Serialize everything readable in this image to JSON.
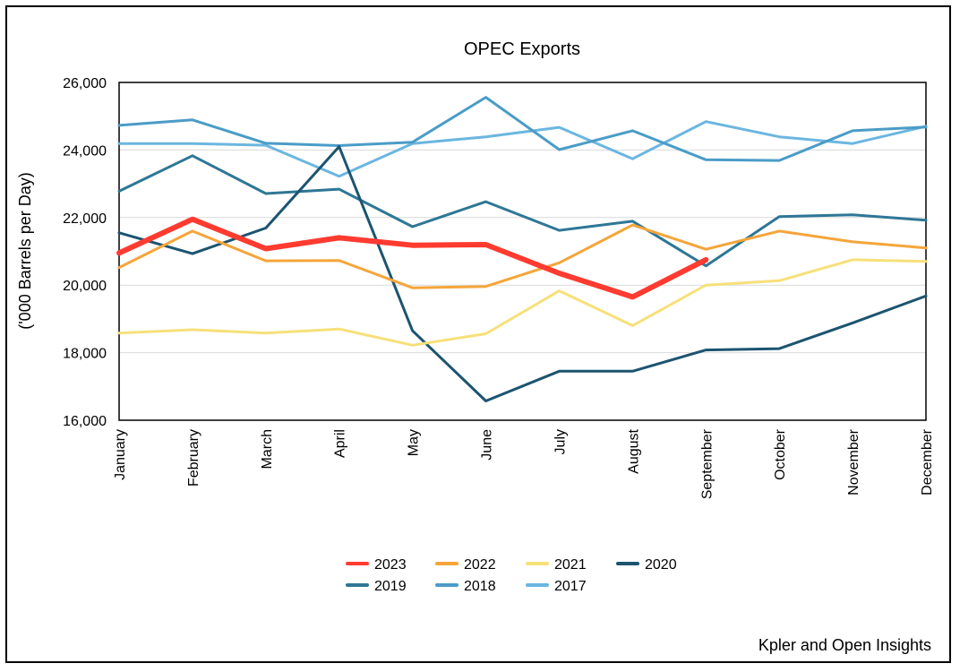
{
  "chart_data": {
    "type": "line",
    "title": "OPEC Exports",
    "ylabel": "('000 Barrels per Day)",
    "xlabel": "",
    "ylim": [
      16000,
      26000
    ],
    "yticks": [
      16000,
      18000,
      20000,
      22000,
      24000,
      26000
    ],
    "ytick_labels": [
      "16,000",
      "18,000",
      "20,000",
      "22,000",
      "24,000",
      "26,000"
    ],
    "grid": true,
    "legend_position": "bottom",
    "categories": [
      "January",
      "February",
      "March",
      "April",
      "May",
      "June",
      "July",
      "August",
      "September",
      "October",
      "November",
      "December"
    ],
    "series": [
      {
        "name": "2023",
        "color": "#ff3b30",
        "width": 6,
        "values": [
          20950,
          21950,
          21080,
          21400,
          21180,
          21200,
          20350,
          19650,
          20750,
          null,
          null,
          null
        ]
      },
      {
        "name": "2022",
        "color": "#f5a53a",
        "width": 3,
        "values": [
          20520,
          21600,
          20720,
          20730,
          19920,
          19960,
          20660,
          21780,
          21060,
          21600,
          21280,
          21100
        ]
      },
      {
        "name": "2021",
        "color": "#f7e07a",
        "width": 3,
        "values": [
          18580,
          18680,
          18580,
          18700,
          18220,
          18560,
          19830,
          18800,
          20000,
          20130,
          20750,
          20700
        ]
      },
      {
        "name": "2020",
        "color": "#1c5470",
        "width": 3,
        "values": [
          21550,
          20930,
          21690,
          24100,
          18650,
          16570,
          17450,
          17450,
          18080,
          18120,
          18880,
          19680
        ]
      },
      {
        "name": "2019",
        "color": "#2e7796",
        "width": 3,
        "values": [
          22780,
          23830,
          22710,
          22840,
          21730,
          22470,
          21620,
          21890,
          20570,
          22030,
          22080,
          21920
        ]
      },
      {
        "name": "2018",
        "color": "#4a9cc7",
        "width": 3,
        "values": [
          24730,
          24890,
          24200,
          24130,
          24230,
          25560,
          24010,
          24570,
          23710,
          23690,
          24570,
          24680
        ]
      },
      {
        "name": "2017",
        "color": "#6bb6e0",
        "width": 3,
        "values": [
          24190,
          24190,
          24140,
          23220,
          24190,
          24390,
          24670,
          23740,
          24840,
          24390,
          24190,
          24700
        ]
      }
    ]
  },
  "source": "Kpler and Open Insights"
}
